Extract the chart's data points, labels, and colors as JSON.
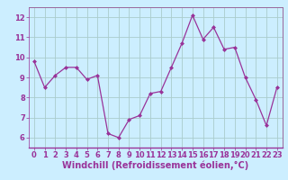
{
  "x": [
    0,
    1,
    2,
    3,
    4,
    5,
    6,
    7,
    8,
    9,
    10,
    11,
    12,
    13,
    14,
    15,
    16,
    17,
    18,
    19,
    20,
    21,
    22,
    23
  ],
  "y": [
    9.8,
    8.5,
    9.1,
    9.5,
    9.5,
    8.9,
    9.1,
    6.2,
    6.0,
    6.9,
    7.1,
    8.2,
    8.3,
    9.5,
    10.7,
    12.1,
    10.9,
    11.5,
    10.4,
    10.5,
    9.0,
    7.9,
    6.6,
    8.5
  ],
  "line_color": "#993399",
  "marker": "D",
  "marker_size": 2,
  "bg_color": "#cceeff",
  "grid_color": "#aacccc",
  "xlabel": "Windchill (Refroidissement éolien,°C)",
  "xlabel_fontsize": 7,
  "xlim": [
    -0.5,
    23.5
  ],
  "ylim": [
    5.5,
    12.5
  ],
  "yticks": [
    6,
    7,
    8,
    9,
    10,
    11,
    12
  ],
  "xticks": [
    0,
    1,
    2,
    3,
    4,
    5,
    6,
    7,
    8,
    9,
    10,
    11,
    12,
    13,
    14,
    15,
    16,
    17,
    18,
    19,
    20,
    21,
    22,
    23
  ],
  "tick_fontsize": 6,
  "tick_color": "#993399",
  "spine_color": "#996699"
}
